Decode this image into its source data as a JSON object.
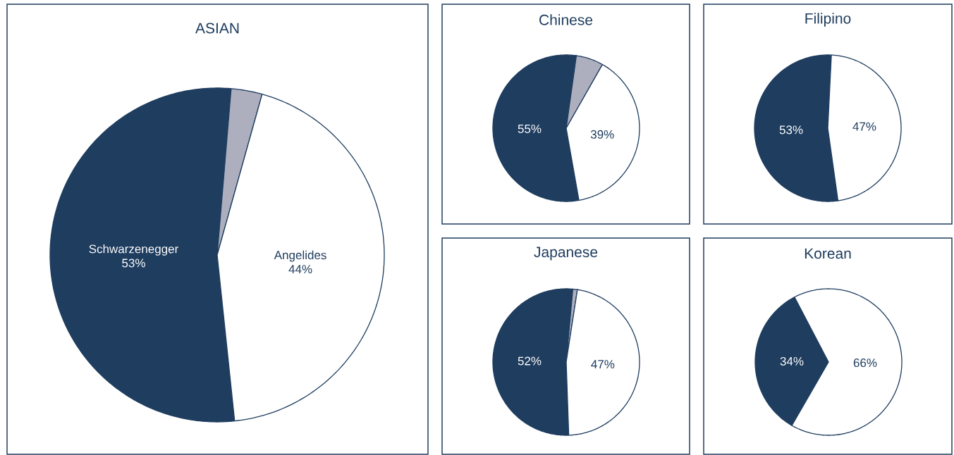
{
  "chart_data": [
    {
      "type": "pie",
      "title": "ASIAN",
      "categories": [
        "Schwarzenegger",
        null,
        "Angelides"
      ],
      "values": [
        53,
        3,
        44
      ],
      "colors": [
        "#1f3d5f",
        "#adafbf",
        "#ffffff"
      ],
      "value_labels": [
        "53%",
        null,
        "44%"
      ]
    },
    {
      "type": "pie",
      "title": "Chinese",
      "categories": [
        null,
        null,
        null
      ],
      "values": [
        55,
        6,
        39
      ],
      "colors": [
        "#1f3d5f",
        "#adafbf",
        "#ffffff"
      ],
      "value_labels": [
        "55%",
        null,
        "39%"
      ]
    },
    {
      "type": "pie",
      "title": "Filipino",
      "categories": [
        null,
        null
      ],
      "values": [
        53,
        47
      ],
      "colors": [
        "#1f3d5f",
        "#ffffff"
      ],
      "value_labels": [
        "53%",
        "47%"
      ]
    },
    {
      "type": "pie",
      "title": "Japanese",
      "categories": [
        null,
        null,
        null
      ],
      "values": [
        52,
        1,
        47
      ],
      "colors": [
        "#1f3d5f",
        "#adafbf",
        "#ffffff"
      ],
      "value_labels": [
        "52%",
        null,
        "47%"
      ]
    },
    {
      "type": "pie",
      "title": "Korean",
      "categories": [
        null,
        null
      ],
      "values": [
        34,
        66
      ],
      "colors": [
        "#1f3d5f",
        "#ffffff"
      ],
      "value_labels": [
        "34%",
        "66%"
      ]
    }
  ]
}
